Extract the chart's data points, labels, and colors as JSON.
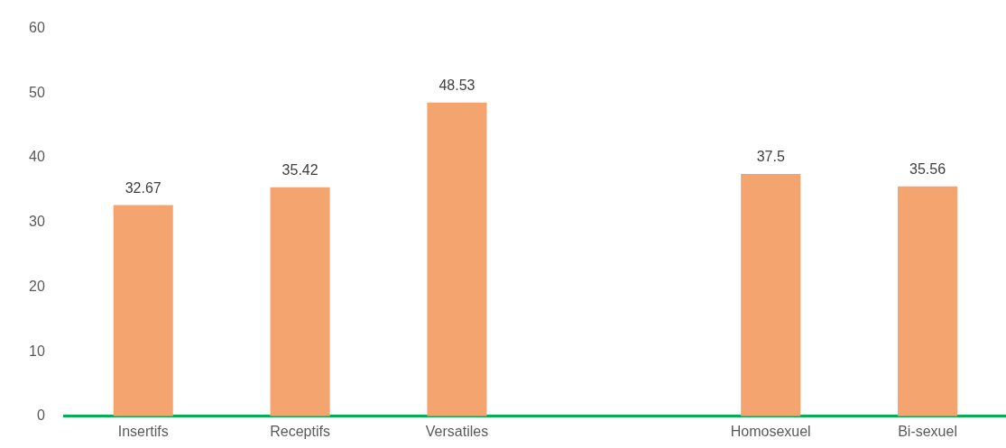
{
  "chart_data": {
    "type": "bar",
    "categories": [
      "Insertifs",
      "Receptifs",
      "Versatiles",
      null,
      "Homosexuel",
      "Bi-sexuel"
    ],
    "values": [
      32.67,
      35.42,
      48.53,
      null,
      37.5,
      35.56
    ],
    "color": "#f4a46e",
    "ylim": [
      0,
      60
    ],
    "yticks": [
      0,
      10,
      20,
      30,
      40,
      50,
      60
    ],
    "grid": false,
    "legend": false,
    "data_labels": true
  }
}
